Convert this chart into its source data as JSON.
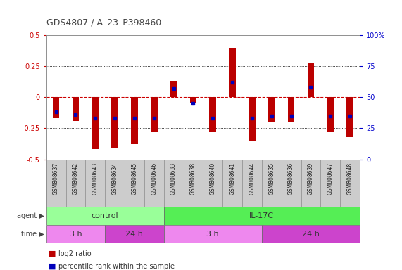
{
  "title": "GDS4807 / A_23_P398460",
  "samples": [
    "GSM808637",
    "GSM808642",
    "GSM808643",
    "GSM808634",
    "GSM808645",
    "GSM808646",
    "GSM808633",
    "GSM808638",
    "GSM808640",
    "GSM808641",
    "GSM808644",
    "GSM808635",
    "GSM808636",
    "GSM808639",
    "GSM808647",
    "GSM808648"
  ],
  "log2_ratio": [
    -0.17,
    -0.19,
    -0.42,
    -0.41,
    -0.38,
    -0.28,
    0.13,
    -0.05,
    -0.28,
    0.4,
    -0.35,
    -0.2,
    -0.2,
    0.28,
    -0.28,
    -0.32
  ],
  "percentile_rank": [
    38,
    36,
    33,
    33,
    33,
    33,
    57,
    45,
    33,
    62,
    33,
    35,
    35,
    58,
    35,
    35
  ],
  "ylim": [
    -0.5,
    0.5
  ],
  "y2lim": [
    0,
    100
  ],
  "bar_color": "#bb0000",
  "dot_color": "#0000bb",
  "hline0_color": "#cc0000",
  "hline_color": "#000000",
  "bg_color": "#ffffff",
  "plot_bg": "#ffffff",
  "grid_bg": "#f0f0f0",
  "agent_groups": [
    {
      "label": "control",
      "start": 0,
      "end": 6,
      "color": "#99ff99"
    },
    {
      "label": "IL-17C",
      "start": 6,
      "end": 16,
      "color": "#55ee55"
    }
  ],
  "time_groups": [
    {
      "label": "3 h",
      "start": 0,
      "end": 3,
      "color": "#ee88ee"
    },
    {
      "label": "24 h",
      "start": 3,
      "end": 6,
      "color": "#cc44cc"
    },
    {
      "label": "3 h",
      "start": 6,
      "end": 11,
      "color": "#ee88ee"
    },
    {
      "label": "24 h",
      "start": 11,
      "end": 16,
      "color": "#cc44cc"
    }
  ],
  "yticks_left": [
    -0.5,
    -0.25,
    0,
    0.25,
    0.5
  ],
  "yticks_right": [
    0,
    25,
    50,
    75,
    100
  ],
  "ytick_labels_right": [
    "0",
    "25",
    "50",
    "75",
    "100%"
  ],
  "bar_width": 0.35,
  "left_color": "#cc0000",
  "right_color": "#0000cc",
  "label_fontsize": 7,
  "annot_fontsize": 8,
  "title_fontsize": 9
}
